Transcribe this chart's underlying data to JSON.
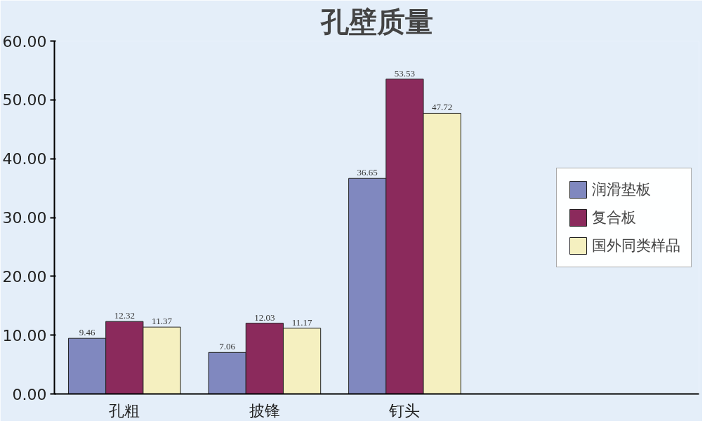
{
  "chart_data": {
    "type": "bar",
    "title": "孔壁质量",
    "categories": [
      "孔粗",
      "披锋",
      "钉头"
    ],
    "series": [
      {
        "name": "润滑垫板",
        "color": "#8088bf",
        "values": [
          9.46,
          7.06,
          36.65
        ]
      },
      {
        "name": "复合板",
        "color": "#8b2a5c",
        "values": [
          12.32,
          12.03,
          53.53
        ]
      },
      {
        "name": "国外同类样品",
        "color": "#f5f0c0",
        "values": [
          11.37,
          11.17,
          47.72
        ]
      }
    ],
    "ylim": [
      0,
      60
    ],
    "yticks": [
      {
        "value": 0,
        "label": "0.00"
      },
      {
        "value": 10,
        "label": "10.00"
      },
      {
        "value": 20,
        "label": "20.00"
      },
      {
        "value": 30,
        "label": "30.00"
      },
      {
        "value": 40,
        "label": "40.00"
      },
      {
        "value": 50,
        "label": "50.00"
      },
      {
        "value": 60,
        "label": "60.00"
      }
    ],
    "data_labels": true,
    "legend": "right",
    "grid": false
  }
}
